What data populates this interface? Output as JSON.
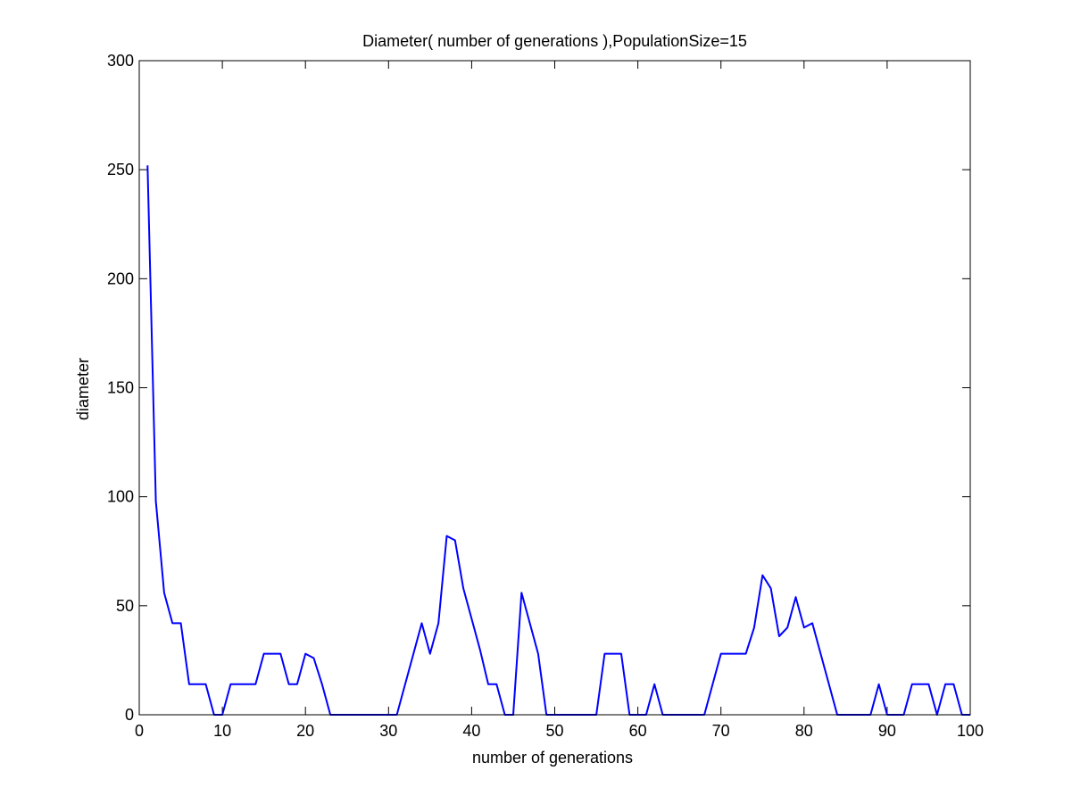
{
  "chart_data": {
    "type": "line",
    "title": "Diameter( number of generations ),PopulationSize=15",
    "xlabel": "number of generations",
    "ylabel": "diameter",
    "xlim": [
      0,
      100
    ],
    "ylim": [
      0,
      300
    ],
    "xticks": [
      0,
      10,
      20,
      30,
      40,
      50,
      60,
      70,
      80,
      90,
      100
    ],
    "yticks": [
      0,
      50,
      100,
      150,
      200,
      250,
      300
    ],
    "grid": false,
    "series": [
      {
        "color": "#0000ff",
        "x": [
          1,
          2,
          3,
          4,
          5,
          6,
          7,
          8,
          9,
          10,
          11,
          12,
          13,
          14,
          15,
          16,
          17,
          18,
          19,
          20,
          21,
          22,
          23,
          24,
          25,
          26,
          27,
          28,
          29,
          30,
          31,
          32,
          33,
          34,
          35,
          36,
          37,
          38,
          39,
          40,
          41,
          42,
          43,
          44,
          45,
          46,
          47,
          48,
          49,
          50,
          51,
          52,
          53,
          54,
          55,
          56,
          57,
          58,
          59,
          60,
          61,
          62,
          63,
          64,
          65,
          66,
          67,
          68,
          69,
          70,
          71,
          72,
          73,
          74,
          75,
          76,
          77,
          78,
          79,
          80,
          81,
          82,
          83,
          84,
          85,
          86,
          87,
          88,
          89,
          90,
          91,
          92,
          93,
          94,
          95,
          96,
          97,
          98,
          99,
          100
        ],
        "y": [
          252,
          98,
          56,
          42,
          42,
          14,
          14,
          14,
          0,
          0,
          14,
          14,
          14,
          14,
          28,
          28,
          28,
          14,
          14,
          28,
          26,
          14,
          0,
          0,
          0,
          0,
          0,
          0,
          0,
          0,
          0,
          14,
          28,
          42,
          28,
          42,
          82,
          80,
          58,
          44,
          30,
          14,
          14,
          0,
          0,
          56,
          42,
          28,
          0,
          0,
          0,
          0,
          0,
          0,
          0,
          28,
          28,
          28,
          0,
          0,
          0,
          14,
          0,
          0,
          0,
          0,
          0,
          0,
          14,
          28,
          28,
          28,
          28,
          40,
          64,
          58,
          36,
          40,
          54,
          40,
          42,
          28,
          14,
          0,
          0,
          0,
          0,
          0,
          14,
          0,
          0,
          0,
          14,
          14,
          14,
          0,
          14,
          14,
          0,
          0
        ]
      }
    ]
  }
}
